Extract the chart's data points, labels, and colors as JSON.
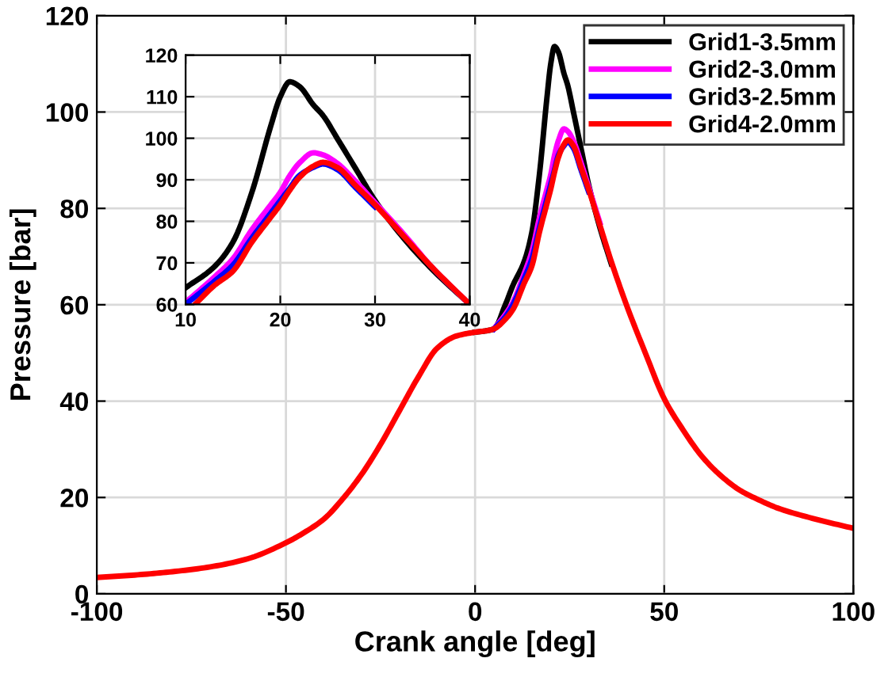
{
  "chart_data": [
    {
      "type": "line",
      "xlabel": "Crank angle [deg]",
      "ylabel": "Pressure [bar]",
      "xlim": [
        -100,
        100
      ],
      "ylim": [
        0,
        120
      ],
      "xticks": [
        -100,
        -50,
        0,
        50,
        100
      ],
      "yticks": [
        0,
        20,
        40,
        60,
        80,
        100,
        120
      ],
      "grid": true,
      "legend": "top right",
      "line_style": "solid",
      "marker": "none",
      "x": [
        -100,
        -90,
        -80,
        -70,
        -60,
        -50,
        -45,
        -40,
        -35,
        -30,
        -25,
        -20,
        -15,
        -10,
        -5,
        0,
        3,
        5,
        8,
        10,
        13,
        15,
        17,
        19,
        20,
        21,
        22,
        23.5,
        24.5,
        26,
        28,
        30,
        33,
        36,
        40,
        45,
        50,
        55,
        60,
        65,
        70,
        75,
        80,
        90,
        100
      ],
      "series": [
        {
          "name": "Grid1-3.5mm",
          "color": "#000000",
          "values": [
            null,
            null,
            null,
            null,
            null,
            null,
            null,
            null,
            null,
            null,
            null,
            null,
            null,
            null,
            null,
            54.3,
            54.6,
            55,
            60,
            64,
            69,
            75,
            87,
            103,
            110,
            113.6,
            112.5,
            108,
            105.5,
            100,
            92.5,
            85,
            76,
            68.5,
            null,
            null,
            null,
            null,
            null,
            null,
            null,
            null,
            null,
            null,
            null
          ]
        },
        {
          "name": "Grid2-3.0mm",
          "color": "#ff00ff",
          "values": [
            null,
            null,
            null,
            null,
            null,
            null,
            null,
            null,
            null,
            null,
            null,
            null,
            null,
            null,
            null,
            null,
            null,
            55,
            58,
            60.5,
            66.5,
            71,
            78,
            84,
            87,
            91,
            94,
            96.5,
            96,
            94,
            89.5,
            84.5,
            77,
            null,
            null,
            null,
            null,
            null,
            null,
            null,
            null,
            null,
            null,
            null,
            null
          ]
        },
        {
          "name": "Grid3-2.5mm",
          "color": "#0000ff",
          "values": [
            null,
            null,
            null,
            null,
            null,
            null,
            null,
            null,
            null,
            null,
            null,
            null,
            null,
            null,
            null,
            null,
            null,
            55,
            57.5,
            60,
            65.5,
            69.5,
            76,
            82,
            85,
            88,
            91,
            93,
            93.8,
            92.5,
            88,
            83.5,
            null,
            null,
            null,
            null,
            null,
            null,
            null,
            null,
            null,
            null,
            null,
            null,
            null
          ]
        },
        {
          "name": "Grid4-2.0mm",
          "color": "#ff0000",
          "values": [
            3.4,
            3.9,
            4.6,
            5.6,
            7.3,
            10.6,
            12.8,
            15.5,
            19.7,
            24.8,
            31,
            38,
            45,
            51,
            53.5,
            54.3,
            54.6,
            55,
            57,
            59,
            64.5,
            68,
            75,
            81,
            84,
            87.5,
            90.5,
            93.3,
            94.2,
            93,
            88.5,
            84,
            76.5,
            69,
            60,
            50,
            40.5,
            34,
            28.5,
            24.5,
            21.5,
            19.5,
            17.8,
            15.5,
            13.6
          ]
        }
      ]
    },
    {
      "type": "line",
      "xlim": [
        10,
        40
      ],
      "ylim": [
        60,
        120
      ],
      "xticks": [
        10,
        20,
        30,
        40
      ],
      "yticks": [
        60,
        70,
        80,
        90,
        100,
        110,
        120
      ],
      "grid": true,
      "legend": false,
      "line_style": "solid",
      "marker": "none",
      "x": [
        10,
        13,
        15,
        17,
        19,
        20,
        21,
        22,
        23.5,
        24.5,
        26,
        28,
        30,
        33,
        36,
        40
      ],
      "series": [
        {
          "color": "#000000",
          "values": [
            64,
            69,
            75,
            87,
            103,
            110,
            113.6,
            112.5,
            108,
            105.5,
            100,
            92.5,
            85,
            76,
            68.5,
            60
          ]
        },
        {
          "color": "#ff00ff",
          "values": [
            60.5,
            66.5,
            71,
            78,
            84,
            87,
            91,
            94,
            96.5,
            96,
            94,
            89.5,
            84.5,
            77,
            69,
            60
          ]
        },
        {
          "color": "#0000ff",
          "values": [
            60,
            65.5,
            69.5,
            76,
            82,
            85,
            88,
            91,
            93,
            93.8,
            92.5,
            88,
            83.5,
            null,
            null,
            null
          ]
        },
        {
          "color": "#ff0000",
          "x": [
            11,
            13,
            15,
            17,
            19,
            20,
            21,
            22,
            23.5,
            24.5,
            26,
            28,
            30,
            33,
            36,
            40
          ],
          "values": [
            60,
            64.5,
            68,
            75,
            81,
            84,
            87.5,
            90.5,
            93.3,
            94.2,
            93,
            88.5,
            84,
            76.5,
            69,
            60
          ]
        }
      ]
    }
  ]
}
